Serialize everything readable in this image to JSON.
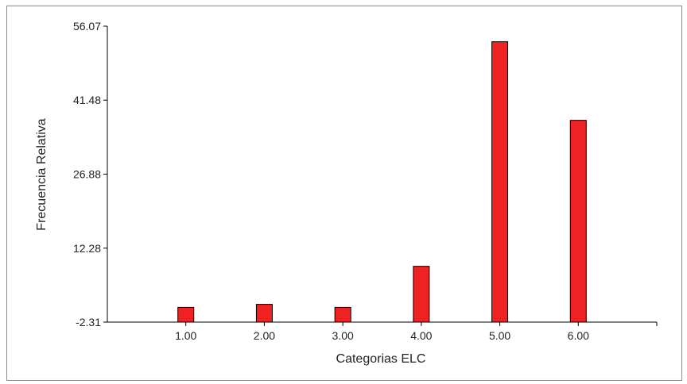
{
  "chart_data": {
    "type": "bar",
    "title": "",
    "xlabel": "Categorias ELC",
    "ylabel": "Frecuencia Relativa",
    "categories": [
      "1.00",
      "2.00",
      "3.00",
      "4.00",
      "5.00",
      "6.00"
    ],
    "values": [
      0.6,
      1.2,
      0.6,
      8.7,
      53.0,
      37.5
    ],
    "xlim": [
      0.0,
      7.0
    ],
    "ylim": [
      -2.31,
      56.07
    ],
    "y_ticks": [
      "-2.31",
      "12.28",
      "26.88",
      "41.48",
      "56.07"
    ],
    "y_tick_values": [
      -2.31,
      12.28,
      26.88,
      41.48,
      56.07
    ],
    "grid": false,
    "legend": "none",
    "bar_color": "#ee2222",
    "bar_edge_color": "#000000"
  }
}
